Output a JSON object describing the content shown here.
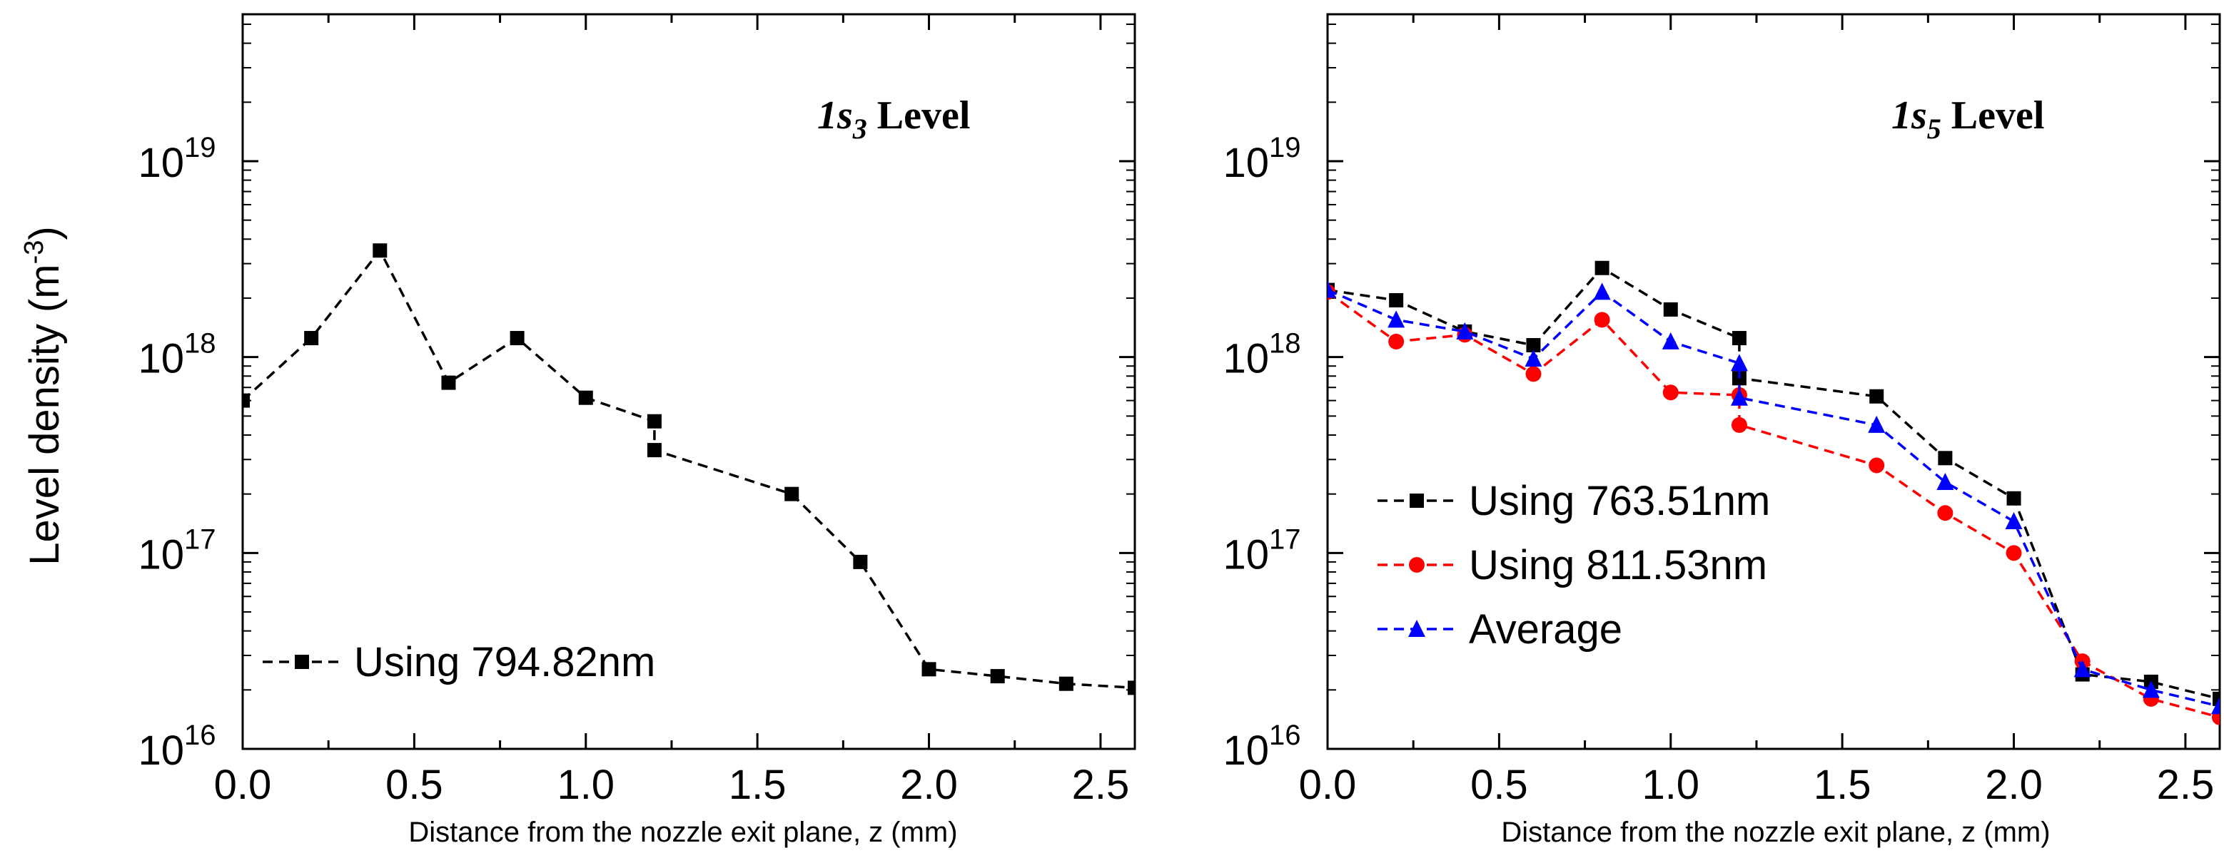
{
  "figure": {
    "ylabel_main": "Level density ",
    "ylabel_unit": "(m",
    "ylabel_exp": "-3",
    "ylabel_close": ")"
  },
  "chart_data": [
    {
      "type": "line",
      "title_level": "1s",
      "title_sub": "3",
      "title_word": " Level",
      "xlabel": "Distance from the nozzle exit plane, z (mm)",
      "ylabel": "Level density (m-3)",
      "yscale": "log",
      "xlim": [
        0,
        2.6
      ],
      "ylim_exp": [
        16,
        19.75
      ],
      "xticks": [
        "0.0",
        "0.5",
        "1.0",
        "1.5",
        "2.0",
        "2.5"
      ],
      "xtick_values": [
        0,
        0.5,
        1.0,
        1.5,
        2.0,
        2.5
      ],
      "yticks_exp": [
        "16",
        "17",
        "18",
        "19"
      ],
      "ytick_base": "10",
      "series": [
        {
          "name": "Using 794.82nm",
          "marker": "square",
          "color": "#000000",
          "x": [
            0.0,
            0.2,
            0.4,
            0.6,
            0.8,
            1.0,
            1.2,
            1.2,
            1.6,
            1.8,
            2.0,
            2.2,
            2.4,
            2.6
          ],
          "y": [
            6e+17,
            1.25e+18,
            3.5e+18,
            7.4e+17,
            1.25e+18,
            6.2e+17,
            4.7e+17,
            3.35e+17,
            2e+17,
            9e+16,
            2.55e+16,
            2.35e+16,
            2.15e+16,
            2.05e+16
          ]
        }
      ],
      "legend_position": "bottom-left"
    },
    {
      "type": "line",
      "title_level": "1s",
      "title_sub": "5",
      "title_word": " Level",
      "xlabel": "Distance from the nozzle exit plane, z (mm)",
      "ylabel": "Level density (m-3)",
      "yscale": "log",
      "xlim": [
        0,
        2.6
      ],
      "ylim_exp": [
        16,
        19.75
      ],
      "xticks": [
        "0.0",
        "0.5",
        "1.0",
        "1.5",
        "2.0",
        "2.5"
      ],
      "xtick_values": [
        0,
        0.5,
        1.0,
        1.5,
        2.0,
        2.5
      ],
      "yticks_exp": [
        "16",
        "17",
        "18",
        "19"
      ],
      "ytick_base": "10",
      "series": [
        {
          "name": "Using 763.51nm",
          "marker": "square",
          "color": "#000000",
          "x": [
            0.0,
            0.2,
            0.4,
            0.6,
            0.8,
            1.0,
            1.2,
            1.2,
            1.6,
            1.8,
            2.0,
            2.2,
            2.4,
            2.6
          ],
          "y": [
            2.2e+18,
            1.95e+18,
            1.35e+18,
            1.15e+18,
            2.85e+18,
            1.75e+18,
            1.25e+18,
            7.8e+17,
            6.3e+17,
            3.05e+17,
            1.9e+17,
            2.4e+16,
            2.2e+16,
            1.8e+16
          ]
        },
        {
          "name": "Using 811.53nm",
          "marker": "circle",
          "color": "#ff0000",
          "x": [
            0.0,
            0.2,
            0.4,
            0.6,
            0.8,
            1.0,
            1.2,
            1.2,
            1.6,
            1.8,
            2.0,
            2.2,
            2.4,
            2.6
          ],
          "y": [
            2.15e+18,
            1.2e+18,
            1.3e+18,
            8.2e+17,
            1.55e+18,
            6.6e+17,
            6.4e+17,
            4.5e+17,
            2.8e+17,
            1.6e+17,
            1e+17,
            2.8e+16,
            1.8e+16,
            1.45e+16
          ]
        },
        {
          "name": "Average",
          "marker": "triangle",
          "color": "#0000ff",
          "x": [
            0.0,
            0.2,
            0.4,
            0.6,
            0.8,
            1.0,
            1.2,
            1.2,
            1.6,
            1.8,
            2.0,
            2.2,
            2.4,
            2.6
          ],
          "y": [
            2.2e+18,
            1.55e+18,
            1.35e+18,
            9.8e+17,
            2.15e+18,
            1.2e+18,
            9.3e+17,
            6.2e+17,
            4.5e+17,
            2.3e+17,
            1.45e+17,
            2.55e+16,
            2e+16,
            1.65e+16
          ]
        }
      ],
      "legend_position": "middle-left"
    }
  ]
}
